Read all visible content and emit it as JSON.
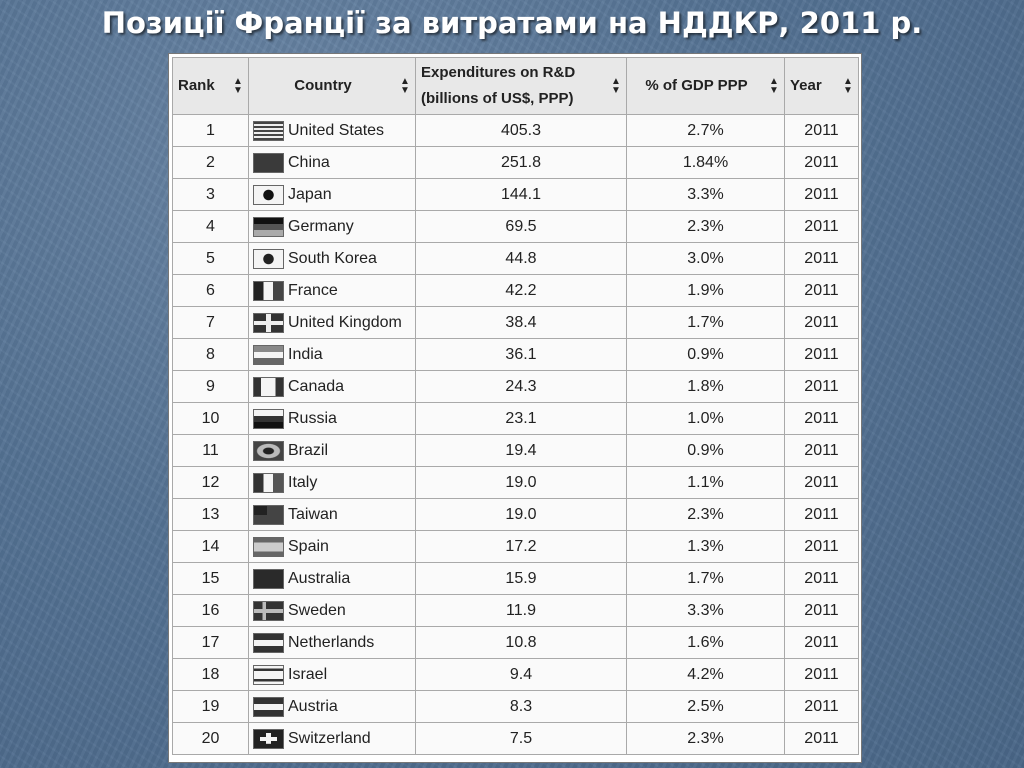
{
  "title": "Позиції Франції за витратами на НДДКР, 2011 р.",
  "sort_icon": "sort-arrows-icon",
  "columns": [
    "Rank",
    "Country",
    "Expenditures on R&D (billions of US$, PPP)",
    "% of GDP PPP",
    "Year"
  ],
  "column_parts": {
    "expenditures_line1": "Expenditures on R&D",
    "expenditures_line2": "(billions of US$, PPP)"
  },
  "rows": [
    {
      "rank": "1",
      "country": "United States",
      "flag": "flag-us-icon",
      "expenditures": "405.3",
      "gdp": "2.7%",
      "year": "2011"
    },
    {
      "rank": "2",
      "country": "China",
      "flag": "flag-cn-icon",
      "expenditures": "251.8",
      "gdp": "1.84%",
      "year": "2011"
    },
    {
      "rank": "3",
      "country": "Japan",
      "flag": "flag-jp-icon",
      "expenditures": "144.1",
      "gdp": "3.3%",
      "year": "2011"
    },
    {
      "rank": "4",
      "country": "Germany",
      "flag": "flag-de-icon",
      "expenditures": "69.5",
      "gdp": "2.3%",
      "year": "2011"
    },
    {
      "rank": "5",
      "country": "South Korea",
      "flag": "flag-kr-icon",
      "expenditures": "44.8",
      "gdp": "3.0%",
      "year": "2011"
    },
    {
      "rank": "6",
      "country": "France",
      "flag": "flag-fr-icon",
      "expenditures": "42.2",
      "gdp": "1.9%",
      "year": "2011"
    },
    {
      "rank": "7",
      "country": "United Kingdom",
      "flag": "flag-gb-icon",
      "expenditures": "38.4",
      "gdp": "1.7%",
      "year": "2011"
    },
    {
      "rank": "8",
      "country": "India",
      "flag": "flag-in-icon",
      "expenditures": "36.1",
      "gdp": "0.9%",
      "year": "2011"
    },
    {
      "rank": "9",
      "country": "Canada",
      "flag": "flag-ca-icon",
      "expenditures": "24.3",
      "gdp": "1.8%",
      "year": "2011"
    },
    {
      "rank": "10",
      "country": "Russia",
      "flag": "flag-ru-icon",
      "expenditures": "23.1",
      "gdp": "1.0%",
      "year": "2011"
    },
    {
      "rank": "11",
      "country": "Brazil",
      "flag": "flag-br-icon",
      "expenditures": "19.4",
      "gdp": "0.9%",
      "year": "2011"
    },
    {
      "rank": "12",
      "country": "Italy",
      "flag": "flag-it-icon",
      "expenditures": "19.0",
      "gdp": "1.1%",
      "year": "2011"
    },
    {
      "rank": "13",
      "country": "Taiwan",
      "flag": "flag-tw-icon",
      "expenditures": "19.0",
      "gdp": "2.3%",
      "year": "2011"
    },
    {
      "rank": "14",
      "country": "Spain",
      "flag": "flag-es-icon",
      "expenditures": "17.2",
      "gdp": "1.3%",
      "year": "2011"
    },
    {
      "rank": "15",
      "country": "Australia",
      "flag": "flag-au-icon",
      "expenditures": "15.9",
      "gdp": "1.7%",
      "year": "2011"
    },
    {
      "rank": "16",
      "country": "Sweden",
      "flag": "flag-se-icon",
      "expenditures": "11.9",
      "gdp": "3.3%",
      "year": "2011"
    },
    {
      "rank": "17",
      "country": "Netherlands",
      "flag": "flag-nl-icon",
      "expenditures": "10.8",
      "gdp": "1.6%",
      "year": "2011"
    },
    {
      "rank": "18",
      "country": "Israel",
      "flag": "flag-il-icon",
      "expenditures": "9.4",
      "gdp": "4.2%",
      "year": "2011"
    },
    {
      "rank": "19",
      "country": "Austria",
      "flag": "flag-at-icon",
      "expenditures": "8.3",
      "gdp": "2.5%",
      "year": "2011"
    },
    {
      "rank": "20",
      "country": "Switzerland",
      "flag": "flag-ch-icon",
      "expenditures": "7.5",
      "gdp": "2.3%",
      "year": "2011"
    }
  ]
}
